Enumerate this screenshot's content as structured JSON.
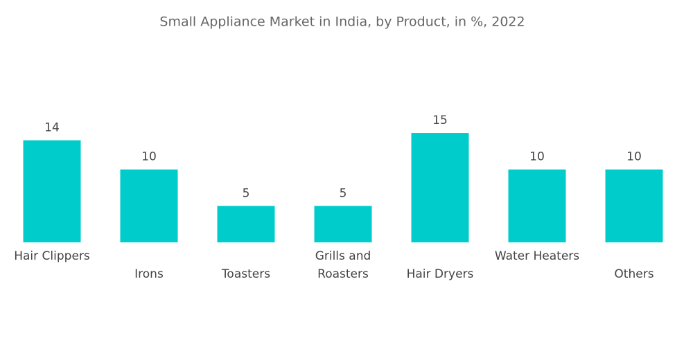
{
  "chart_data": {
    "type": "bar",
    "title": "Small Appliance Market in India, by Product, in %, 2022",
    "categories": [
      "Hair Clippers",
      "Irons",
      "Toasters",
      "Grills and Roasters",
      "Hair Dryers",
      "Water Heaters",
      "Others"
    ],
    "values": [
      14,
      10,
      5,
      5,
      15,
      10,
      10
    ],
    "color": "#00cccc"
  }
}
